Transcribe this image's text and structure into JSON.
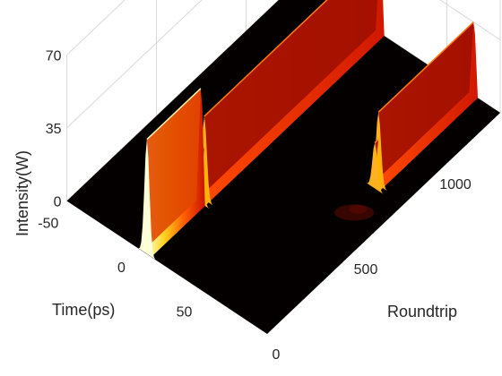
{
  "chart_data": {
    "type": "surface",
    "title": "",
    "xlabel": "Roundtrip",
    "ylabel": "Time(ps)",
    "zlabel": "Intensity(W)",
    "roundtrip_range": [
      0,
      1300
    ],
    "time_range": [
      -60,
      90
    ],
    "intensity_range": [
      0,
      70
    ],
    "roundtrip_ticks": [
      0,
      500,
      1000
    ],
    "time_ticks": [
      -50,
      0,
      50
    ],
    "intensity_ticks": [
      0,
      35,
      70
    ],
    "grid": true,
    "colormap": "hot",
    "pulses": [
      {
        "name": "",
        "roundtrip_start": 0,
        "roundtrip_end": 300,
        "time": 0,
        "peak": 55
      },
      {
        "name": "",
        "roundtrip_start": 300,
        "roundtrip_end": 320,
        "time": 0,
        "peak": 25
      },
      {
        "name": "",
        "roundtrip_start": 320,
        "roundtrip_end": 1300,
        "time": 0,
        "peak": 40
      },
      {
        "name": "",
        "roundtrip_start": 750,
        "roundtrip_end": 770,
        "time": 70,
        "peak": 22
      },
      {
        "name": "",
        "roundtrip_start": 770,
        "roundtrip_end": 1300,
        "time": 70,
        "peak": 35
      }
    ]
  }
}
